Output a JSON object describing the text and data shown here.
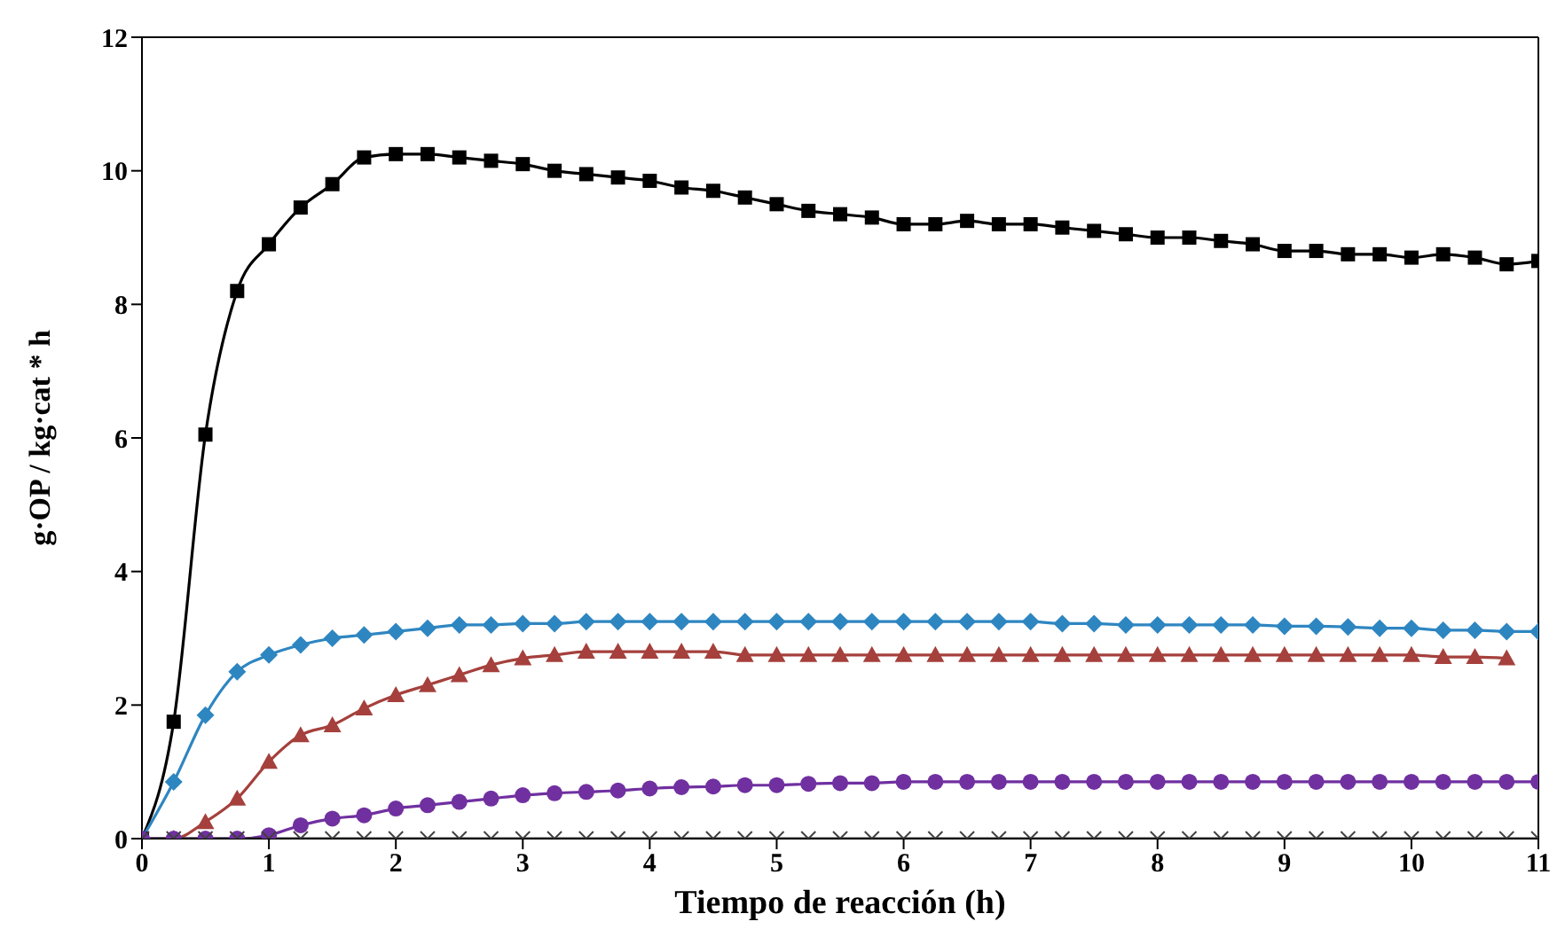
{
  "chart_data": {
    "type": "line",
    "xlabel": "Tiempo de reacción (h)",
    "ylabel": "g·OP / kg·cat * h",
    "x": [
      0,
      0.25,
      0.5,
      0.75,
      1,
      1.25,
      1.5,
      1.75,
      2,
      2.25,
      2.5,
      2.75,
      3,
      3.25,
      3.5,
      3.75,
      4,
      4.25,
      4.5,
      4.75,
      5,
      5.25,
      5.5,
      5.75,
      6,
      6.25,
      6.5,
      6.75,
      7,
      7.25,
      7.5,
      7.75,
      8,
      8.25,
      8.5,
      8.75,
      9,
      9.25,
      9.5,
      9.75,
      10,
      10.25,
      10.5,
      10.75,
      11
    ],
    "series": [
      {
        "color": "#000000",
        "marker": "square",
        "values": [
          0,
          1.75,
          6.05,
          8.2,
          8.9,
          9.45,
          9.8,
          10.2,
          10.25,
          10.25,
          10.2,
          10.15,
          10.1,
          10.0,
          9.95,
          9.9,
          9.85,
          9.75,
          9.7,
          9.6,
          9.5,
          9.4,
          9.35,
          9.3,
          9.2,
          9.2,
          9.25,
          9.2,
          9.2,
          9.15,
          9.1,
          9.05,
          9.0,
          9.0,
          8.95,
          8.9,
          8.8,
          8.8,
          8.75,
          8.75,
          8.7,
          8.75,
          8.7,
          8.6,
          8.65
        ]
      },
      {
        "color": "#2e86c1",
        "marker": "diamond",
        "values": [
          0,
          0.85,
          1.85,
          2.5,
          2.75,
          2.9,
          3.0,
          3.05,
          3.1,
          3.15,
          3.2,
          3.2,
          3.22,
          3.22,
          3.25,
          3.25,
          3.25,
          3.25,
          3.25,
          3.25,
          3.25,
          3.25,
          3.25,
          3.25,
          3.25,
          3.25,
          3.25,
          3.25,
          3.25,
          3.22,
          3.22,
          3.2,
          3.2,
          3.2,
          3.2,
          3.2,
          3.18,
          3.18,
          3.17,
          3.15,
          3.15,
          3.12,
          3.12,
          3.1,
          3.1
        ]
      },
      {
        "color": "#a5403c",
        "marker": "triangle",
        "values": [
          0,
          0,
          0.25,
          0.6,
          1.15,
          1.55,
          1.7,
          1.95,
          2.15,
          2.3,
          2.45,
          2.6,
          2.7,
          2.75,
          2.8,
          2.8,
          2.8,
          2.8,
          2.8,
          2.75,
          2.75,
          2.75,
          2.75,
          2.75,
          2.75,
          2.75,
          2.75,
          2.75,
          2.75,
          2.75,
          2.75,
          2.75,
          2.75,
          2.75,
          2.75,
          2.75,
          2.75,
          2.75,
          2.75,
          2.75,
          2.75,
          2.72,
          2.72,
          2.7,
          null
        ]
      },
      {
        "color": "#7030a0",
        "marker": "circle",
        "values": [
          0,
          0,
          0,
          0,
          0.05,
          0.2,
          0.3,
          0.35,
          0.45,
          0.5,
          0.55,
          0.6,
          0.65,
          0.68,
          0.7,
          0.72,
          0.75,
          0.77,
          0.78,
          0.8,
          0.8,
          0.82,
          0.83,
          0.83,
          0.85,
          0.85,
          0.85,
          0.85,
          0.85,
          0.85,
          0.85,
          0.85,
          0.85,
          0.85,
          0.85,
          0.85,
          0.85,
          0.85,
          0.85,
          0.85,
          0.85,
          0.85,
          0.85,
          0.85,
          0.85
        ]
      },
      {
        "color": "#404040",
        "marker": "cross",
        "values": [
          0,
          0,
          0,
          0,
          0,
          0,
          0,
          0,
          0,
          0,
          0,
          0,
          0,
          0,
          0,
          0,
          0,
          0,
          0,
          0,
          0,
          0,
          0,
          0,
          0,
          0,
          0,
          0,
          0,
          0,
          0,
          0,
          0,
          0,
          0,
          0,
          0,
          0,
          0,
          0,
          0,
          0,
          0,
          0,
          0
        ]
      }
    ],
    "xlim": [
      0,
      11
    ],
    "xticks": [
      0,
      1,
      2,
      3,
      4,
      5,
      6,
      7,
      8,
      9,
      10,
      11
    ],
    "ylim": [
      0,
      12
    ],
    "yticks": [
      0,
      2,
      4,
      6,
      8,
      10,
      12
    ],
    "grid": false,
    "legend": false,
    "line_style": "solid"
  }
}
